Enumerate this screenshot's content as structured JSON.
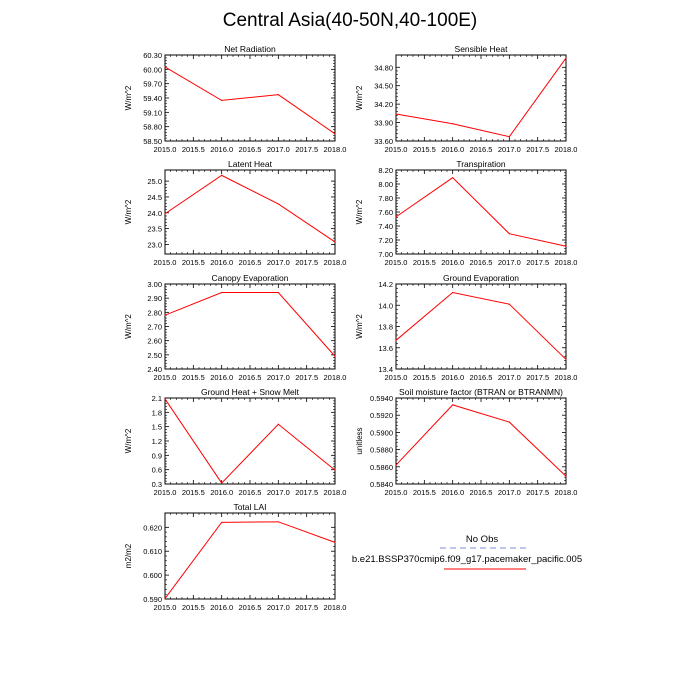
{
  "title": "Central Asia(40-50N,40-100E)",
  "legend": {
    "entries": [
      {
        "label": "No Obs",
        "color": "#aab0e6",
        "dash": true
      },
      {
        "label": "b.e21.BSSP370cmip6.f09_g17.pacemaker_pacific.005",
        "color": "#ff0000",
        "dash": false
      }
    ]
  },
  "chart_data": [
    {
      "type": "line",
      "title": "Net Radiation",
      "ylabel": "W/m^2",
      "x": [
        2015,
        2016,
        2017,
        2018
      ],
      "xlim": [
        2015,
        2018
      ],
      "xticks": [
        "2015.0",
        "2015.5",
        "2016.0",
        "2016.5",
        "2017.0",
        "2017.5",
        "2018.0"
      ],
      "ylim": [
        58.5,
        60.3
      ],
      "yticks": [
        "58.50",
        "58.80",
        "59.10",
        "59.40",
        "59.70",
        "60.00",
        "60.30"
      ],
      "ytick_values": [
        58.5,
        58.8,
        59.1,
        59.4,
        59.7,
        60.0,
        60.3
      ],
      "series": [
        {
          "color": "#ff0000",
          "values": [
            60.05,
            59.35,
            59.47,
            58.65
          ]
        }
      ]
    },
    {
      "type": "line",
      "title": "Sensible Heat",
      "ylabel": "W/m^2",
      "x": [
        2015,
        2016,
        2017,
        2018
      ],
      "xlim": [
        2015,
        2018
      ],
      "xticks": [
        "2015.0",
        "2015.5",
        "2016.0",
        "2016.5",
        "2017.0",
        "2017.5",
        "2018.0"
      ],
      "ylim": [
        33.6,
        35.0
      ],
      "yticks": [
        "33.60",
        "33.90",
        "34.20",
        "34.50",
        "34.80"
      ],
      "ytick_values": [
        33.6,
        33.9,
        34.2,
        34.5,
        34.8
      ],
      "series": [
        {
          "color": "#ff0000",
          "values": [
            34.04,
            33.88,
            33.67,
            34.95
          ]
        }
      ]
    },
    {
      "type": "line",
      "title": "Latent Heat",
      "ylabel": "W/m^2",
      "x": [
        2015,
        2016,
        2017,
        2018
      ],
      "xlim": [
        2015,
        2018
      ],
      "xticks": [
        "2015.0",
        "2015.5",
        "2016.0",
        "2016.5",
        "2017.0",
        "2017.5",
        "2018.0"
      ],
      "ylim": [
        22.7,
        25.35
      ],
      "yticks": [
        "23.0",
        "23.5",
        "24.0",
        "24.5",
        "25.0"
      ],
      "ytick_values": [
        23.0,
        23.5,
        24.0,
        24.5,
        25.0
      ],
      "series": [
        {
          "color": "#ff0000",
          "values": [
            23.97,
            25.18,
            24.28,
            23.08
          ]
        }
      ]
    },
    {
      "type": "line",
      "title": "Transpiration",
      "ylabel": "W/m^2",
      "x": [
        2015,
        2016,
        2017,
        2018
      ],
      "xlim": [
        2015,
        2018
      ],
      "xticks": [
        "2015.0",
        "2015.5",
        "2016.0",
        "2016.5",
        "2017.0",
        "2017.5",
        "2018.0"
      ],
      "ylim": [
        7.0,
        8.2
      ],
      "yticks": [
        "7.00",
        "7.20",
        "7.40",
        "7.60",
        "7.80",
        "8.00",
        "8.20"
      ],
      "ytick_values": [
        7.0,
        7.2,
        7.4,
        7.6,
        7.8,
        8.0,
        8.2
      ],
      "series": [
        {
          "color": "#ff0000",
          "values": [
            7.53,
            8.09,
            7.29,
            7.11
          ]
        }
      ]
    },
    {
      "type": "line",
      "title": "Canopy Evaporation",
      "ylabel": "W/m^2",
      "x": [
        2015,
        2016,
        2017,
        2018
      ],
      "xlim": [
        2015,
        2018
      ],
      "xticks": [
        "2015.0",
        "2015.5",
        "2016.0",
        "2016.5",
        "2017.0",
        "2017.5",
        "2018.0"
      ],
      "ylim": [
        2.4,
        3.0
      ],
      "yticks": [
        "2.40",
        "2.50",
        "2.60",
        "2.70",
        "2.80",
        "2.90",
        "3.00"
      ],
      "ytick_values": [
        2.4,
        2.5,
        2.6,
        2.7,
        2.8,
        2.9,
        3.0
      ],
      "series": [
        {
          "color": "#ff0000",
          "values": [
            2.78,
            2.94,
            2.94,
            2.49
          ]
        }
      ]
    },
    {
      "type": "line",
      "title": "Ground Evaporation",
      "ylabel": "W/m^2",
      "x": [
        2015,
        2016,
        2017,
        2018
      ],
      "xlim": [
        2015,
        2018
      ],
      "xticks": [
        "2015.0",
        "2015.5",
        "2016.0",
        "2016.5",
        "2017.0",
        "2017.5",
        "2018.0"
      ],
      "ylim": [
        13.4,
        14.2
      ],
      "yticks": [
        "13.4",
        "13.6",
        "13.8",
        "14.0",
        "14.2"
      ],
      "ytick_values": [
        13.4,
        13.6,
        13.8,
        14.0,
        14.2
      ],
      "series": [
        {
          "color": "#ff0000",
          "values": [
            13.67,
            14.12,
            14.01,
            13.49
          ]
        }
      ]
    },
    {
      "type": "line",
      "title": "Ground Heat + Snow Melt",
      "ylabel": "W/m^2",
      "x": [
        2015,
        2016,
        2017,
        2018
      ],
      "xlim": [
        2015,
        2018
      ],
      "xticks": [
        "2015.0",
        "2015.5",
        "2016.0",
        "2016.5",
        "2017.0",
        "2017.5",
        "2018.0"
      ],
      "ylim": [
        0.3,
        2.1
      ],
      "yticks": [
        "0.3",
        "0.6",
        "0.9",
        "1.2",
        "1.5",
        "1.8",
        "2.1"
      ],
      "ytick_values": [
        0.3,
        0.6,
        0.9,
        1.2,
        1.5,
        1.8,
        2.1
      ],
      "series": [
        {
          "color": "#ff0000",
          "values": [
            2.08,
            0.32,
            1.55,
            0.59
          ]
        }
      ]
    },
    {
      "type": "line",
      "title": "Soil moisture factor (BTRAN or BTRANMN)",
      "ylabel": "unitless",
      "x": [
        2015,
        2016,
        2017,
        2018
      ],
      "xlim": [
        2015,
        2018
      ],
      "xticks": [
        "2015.0",
        "2015.5",
        "2016.0",
        "2016.5",
        "2017.0",
        "2017.5",
        "2018.0"
      ],
      "ylim": [
        0.584,
        0.594
      ],
      "yticks": [
        "0.5840",
        "0.5860",
        "0.5880",
        "0.5900",
        "0.5920",
        "0.5940"
      ],
      "ytick_values": [
        0.584,
        0.586,
        0.588,
        0.59,
        0.592,
        0.594
      ],
      "series": [
        {
          "color": "#ff0000",
          "values": [
            0.5862,
            0.5932,
            0.5912,
            0.5849
          ]
        }
      ]
    },
    {
      "type": "line",
      "title": "Total LAI",
      "ylabel": "m2/m2",
      "x": [
        2015,
        2016,
        2017,
        2018
      ],
      "xlim": [
        2015,
        2018
      ],
      "xticks": [
        "2015.0",
        "2015.5",
        "2016.0",
        "2016.5",
        "2017.0",
        "2017.5",
        "2018.0"
      ],
      "ylim": [
        0.59,
        0.626
      ],
      "yticks": [
        "0.590",
        "0.600",
        "0.610",
        "0.620"
      ],
      "ytick_values": [
        0.59,
        0.6,
        0.61,
        0.62
      ],
      "series": [
        {
          "color": "#ff0000",
          "values": [
            0.5902,
            0.6221,
            0.6223,
            0.6137
          ]
        }
      ]
    }
  ]
}
